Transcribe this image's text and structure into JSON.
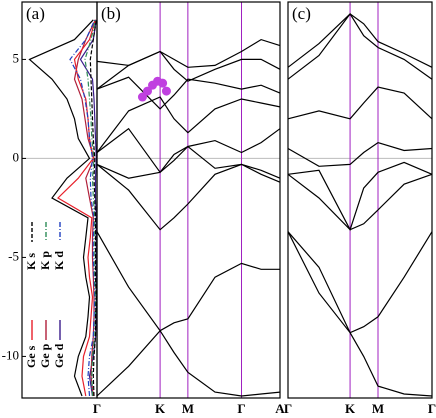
{
  "chart_data": [
    {
      "type": "dos",
      "title": "(a)",
      "x": [
        -12,
        -11,
        -10,
        -9,
        -8,
        -7,
        -6,
        -5,
        -4,
        -3,
        -2,
        -1,
        0,
        1,
        2,
        3,
        4,
        5,
        6,
        7
      ],
      "xlim": [
        -12.1,
        7.9
      ],
      "xticks": [
        -10,
        -5,
        0,
        5
      ],
      "ylim": [
        0,
        10
      ],
      "hline": 0,
      "series": [
        {
          "name": "K s",
          "color": "#000000",
          "style": "dashed",
          "values": [
            0.4,
            0.5,
            0.4,
            0.2,
            0.2,
            0.1,
            0.2,
            0.2,
            0.2,
            0.2,
            0.3,
            0.4,
            0.3,
            0.5,
            0.6,
            0.7,
            0.8,
            0.9,
            0.5,
            0.1
          ]
        },
        {
          "name": "K p",
          "color": "#2e8b57",
          "style": "dashdot",
          "values": [
            0.6,
            0.7,
            0.6,
            0.3,
            0.2,
            0.2,
            0.3,
            0.3,
            0.3,
            0.3,
            0.5,
            0.6,
            0.4,
            0.7,
            0.8,
            1.0,
            1.2,
            1.6,
            0.8,
            0.2
          ]
        },
        {
          "name": "K d",
          "color": "#1f3fbf",
          "style": "dashdot",
          "values": [
            1.0,
            1.2,
            1.0,
            0.5,
            0.4,
            0.3,
            0.4,
            0.5,
            0.5,
            0.4,
            0.8,
            0.9,
            0.6,
            1.0,
            1.2,
            1.6,
            2.2,
            3.6,
            1.5,
            0.3
          ]
        },
        {
          "name": "Ge s",
          "color": "#e8202a",
          "style": "solid",
          "values": [
            1.5,
            2.0,
            1.8,
            1.0,
            0.8,
            0.6,
            1.0,
            1.2,
            0.9,
            0.7,
            5.2,
            2.5,
            0.5,
            1.0,
            1.2,
            1.5,
            2.5,
            3.0,
            1.0,
            0.2
          ]
        },
        {
          "name": "Ge p",
          "color": "#b0203a",
          "style": "solid",
          "values": [
            0.5,
            0.8,
            0.7,
            0.5,
            0.4,
            0.4,
            0.5,
            0.6,
            0.6,
            0.5,
            1.0,
            1.5,
            0.4,
            1.2,
            1.6,
            2.0,
            3.0,
            2.5,
            1.5,
            0.2
          ]
        },
        {
          "name": "Ge d",
          "color": "#3a1c8c",
          "style": "solid",
          "values": [
            0.6,
            1.0,
            0.5,
            0.2,
            0.1,
            0.1,
            0.1,
            0.1,
            0.1,
            0.1,
            0.2,
            0.2,
            0.1,
            0.2,
            0.3,
            0.4,
            0.6,
            2.2,
            0.5,
            0.1
          ]
        },
        {
          "color": "#000000",
          "style": "solid",
          "values": [
            2.0,
            3.0,
            2.5,
            1.5,
            1.2,
            1.0,
            1.5,
            1.8,
            1.5,
            1.2,
            6.0,
            4.0,
            1.0,
            2.5,
            3.0,
            4.0,
            6.0,
            9.0,
            3.0,
            0.5
          ]
        }
      ]
    },
    {
      "type": "line",
      "title": "(b)",
      "x": [
        0,
        0.5,
        1,
        1.22,
        1.44,
        1.87,
        2.29,
        2.6,
        2.9
      ],
      "xlim": [
        0,
        2.9
      ],
      "ylim": [
        -12.1,
        7.9
      ],
      "hline": 0,
      "vline_color": "#a020c0",
      "xticks": [
        {
          "value": 0,
          "label": "Γ"
        },
        {
          "value": 1,
          "label": "K"
        },
        {
          "value": 1.44,
          "label": "M"
        },
        {
          "value": 2.29,
          "label": "Γ"
        },
        {
          "value": 2.9,
          "label": "A"
        }
      ],
      "series": [
        {
          "color": "#000000",
          "values": [
            -12.0,
            -10.5,
            -8.7,
            -9.8,
            -10.8,
            -11.8,
            -12.0,
            -11.9,
            -11.8
          ]
        },
        {
          "color": "#000000",
          "values": [
            -3.7,
            -6.5,
            -8.7,
            -8.3,
            -8.1,
            -6.0,
            -5.3,
            -5.6,
            -5.6
          ]
        },
        {
          "color": "#000000",
          "values": [
            -0.3,
            -1.6,
            -3.6,
            -3.0,
            -2.3,
            -0.8,
            -0.3,
            -0.8,
            -1.2
          ]
        },
        {
          "color": "#000000",
          "values": [
            -0.3,
            -1.0,
            -0.7,
            -0.1,
            0.6,
            -0.5,
            -0.3,
            -0.6,
            -1.0
          ]
        },
        {
          "color": "#000000",
          "values": [
            0.3,
            1.5,
            -0.7,
            0.2,
            0.6,
            0.9,
            0.3,
            0.8,
            1.5
          ]
        },
        {
          "color": "#000000",
          "values": [
            0.3,
            2.4,
            3.1,
            2.0,
            1.3,
            2.5,
            3.0,
            2.8,
            2.6
          ]
        },
        {
          "color": "#000000",
          "values": [
            3.5,
            4.1,
            2.5,
            3.2,
            4.0,
            3.8,
            3.5,
            3.7,
            3.3
          ]
        },
        {
          "color": "#000000",
          "values": [
            3.5,
            4.7,
            5.4,
            4.5,
            3.9,
            4.5,
            5.0,
            5.0,
            4.5
          ]
        },
        {
          "color": "#000000",
          "values": [
            4.9,
            4.7,
            5.4,
            5.0,
            4.6,
            4.7,
            5.4,
            6.0,
            5.7
          ]
        }
      ],
      "points": {
        "color": "#c040e0",
        "x": [
          0.72,
          0.8,
          0.88,
          0.96,
          1.04,
          1.1
        ],
        "y": [
          3.1,
          3.4,
          3.7,
          3.9,
          3.8,
          3.4
        ]
      }
    },
    {
      "type": "line",
      "title": "(c)",
      "x": [
        0,
        0.5,
        1,
        1.22,
        1.45,
        1.87,
        2.32
      ],
      "xlim": [
        0,
        2.32
      ],
      "ylim": [
        -12.1,
        7.9
      ],
      "hline": 0,
      "vline_color": "#a020c0",
      "xticks": [
        {
          "value": 0,
          "label": "Γ"
        },
        {
          "value": 1,
          "label": "K"
        },
        {
          "value": 1.45,
          "label": "M"
        },
        {
          "value": 2.32,
          "label": "Γ"
        }
      ],
      "series": [
        {
          "color": "#000000",
          "values": [
            -3.7,
            -6.8,
            -8.8,
            -8.5,
            -8.0,
            -6.0,
            -3.7
          ]
        },
        {
          "color": "#000000",
          "values": [
            -3.7,
            -5.5,
            -8.8,
            -10.0,
            -11.5,
            -11.9,
            -12.0
          ]
        },
        {
          "color": "#000000",
          "values": [
            -0.8,
            -2.0,
            -3.6,
            -3.3,
            -2.6,
            -1.3,
            -0.8
          ]
        },
        {
          "color": "#000000",
          "values": [
            -0.8,
            -0.6,
            -3.6,
            -1.5,
            -0.7,
            -0.2,
            -0.8
          ]
        },
        {
          "color": "#000000",
          "values": [
            0.5,
            -0.4,
            -0.3,
            0.3,
            0.8,
            0.4,
            0.5
          ]
        },
        {
          "color": "#000000",
          "values": [
            2.0,
            2.4,
            2.0,
            2.8,
            3.6,
            3.3,
            2.0
          ]
        },
        {
          "color": "#000000",
          "values": [
            4.0,
            5.2,
            7.3,
            6.2,
            5.6,
            5.0,
            4.0
          ]
        },
        {
          "color": "#000000",
          "values": [
            4.6,
            5.8,
            7.3,
            6.8,
            5.9,
            5.3,
            4.6
          ]
        }
      ]
    }
  ]
}
